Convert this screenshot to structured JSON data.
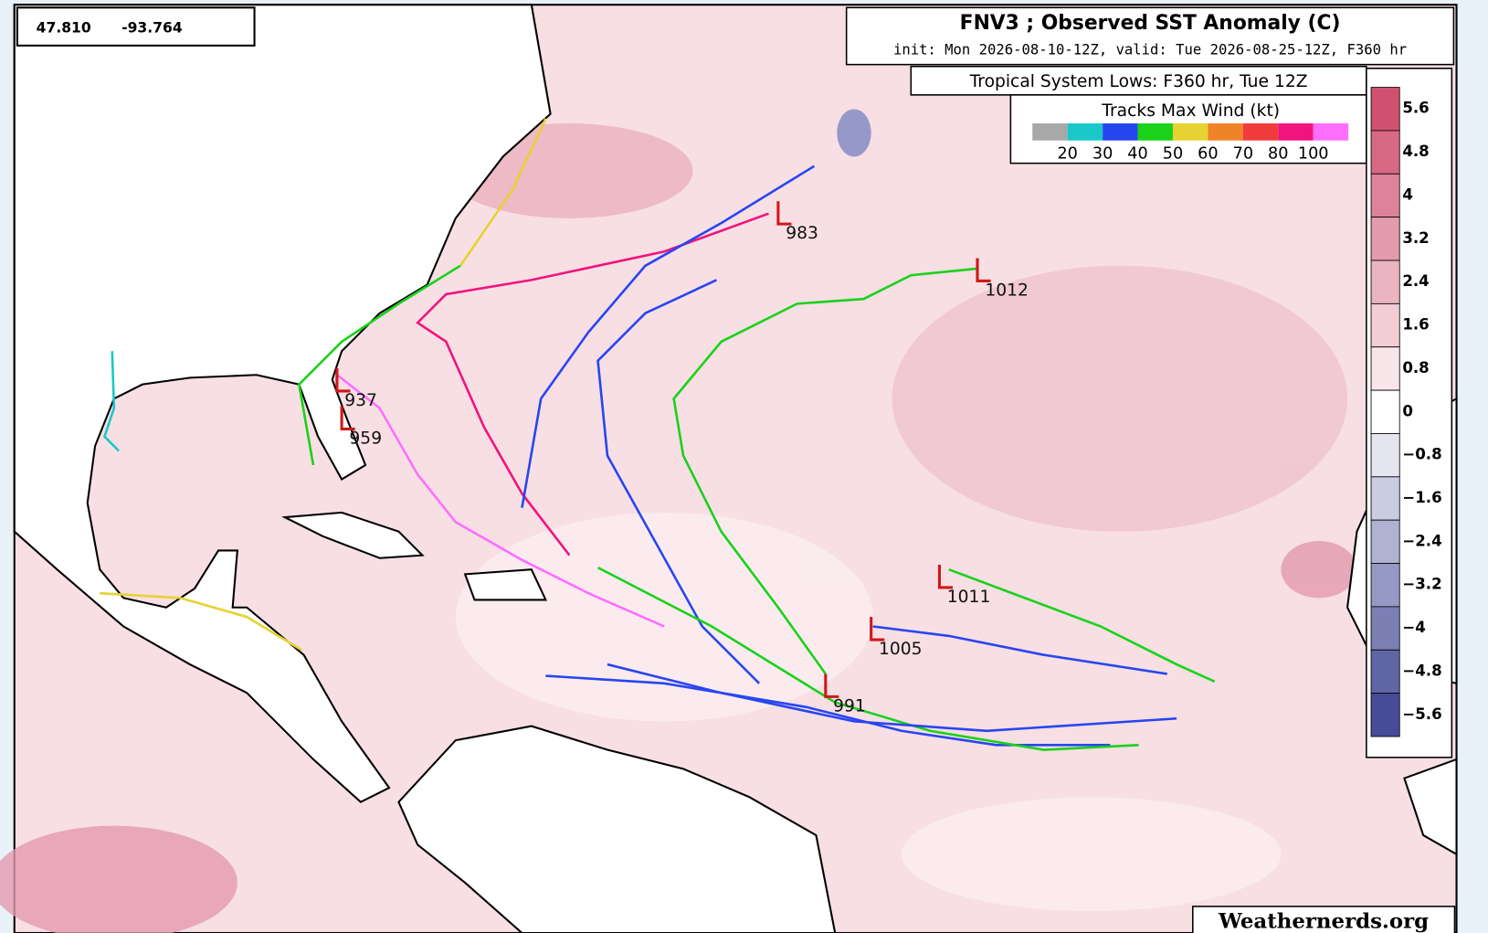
{
  "coords": {
    "lat": "47.810",
    "lon": "-93.764"
  },
  "header": {
    "title": "FNV3 ; Observed SST Anomaly (C)",
    "subtitle": "init: Mon 2026-08-10-12Z, valid: Tue 2026-08-25-12Z, F360 hr"
  },
  "lows_box": {
    "title": "Tropical System Lows: F360 hr, Tue 12Z"
  },
  "wind_legend": {
    "title": "Tracks Max Wind (kt)",
    "labels": [
      "20",
      "30",
      "40",
      "50",
      "60",
      "70",
      "80",
      "100"
    ],
    "colors": [
      "#a8a8a8",
      "#19c8c8",
      "#2846f0",
      "#19d219",
      "#e6d232",
      "#f08228",
      "#f03c3c",
      "#f0147d",
      "#ff6eff"
    ]
  },
  "colorbar": {
    "labels": [
      "5.6",
      "4.8",
      "4",
      "3.2",
      "2.4",
      "1.6",
      "0.8",
      "0",
      "−0.8",
      "−1.6",
      "−2.4",
      "−3.2",
      "−4",
      "−4.8",
      "−5.6"
    ]
  },
  "lows": [
    {
      "label": "983"
    },
    {
      "label": "1012"
    },
    {
      "label": "937"
    },
    {
      "label": "959"
    },
    {
      "label": "1011"
    },
    {
      "label": "1005"
    },
    {
      "label": "991"
    }
  ],
  "watermark": "Weathernerds.org"
}
